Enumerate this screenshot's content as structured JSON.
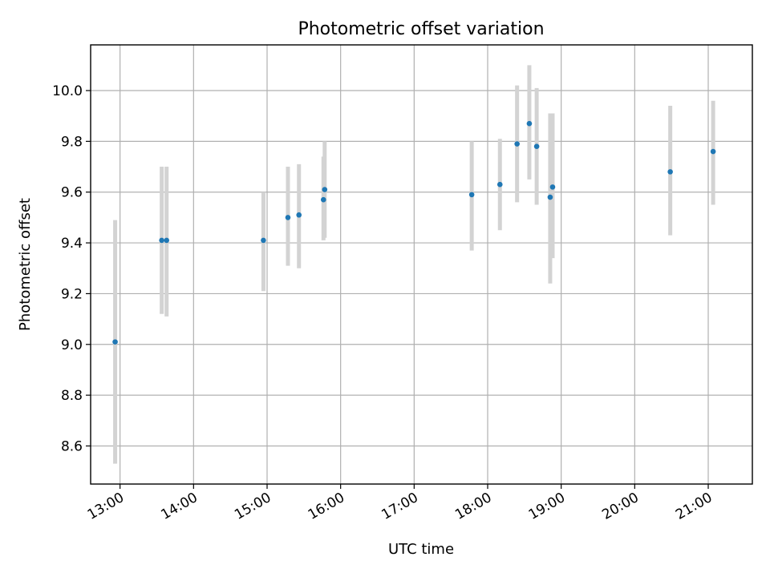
{
  "chart_data": {
    "type": "scatter",
    "title": "Photometric offset variation",
    "xlabel": "UTC time",
    "ylabel": "Photometric offset",
    "x_ticks": [
      "13:00",
      "14:00",
      "15:00",
      "16:00",
      "17:00",
      "18:00",
      "19:00",
      "20:00",
      "21:00"
    ],
    "y_ticks": [
      "8.6",
      "8.8",
      "9.0",
      "9.2",
      "9.4",
      "9.6",
      "9.8",
      "10.0"
    ],
    "xlim": [
      "12:36",
      "21:36"
    ],
    "ylim": [
      8.45,
      10.18
    ],
    "grid": true,
    "colors": {
      "point": "#1f77b4",
      "errorbar": "#d3d3d3"
    },
    "series": [
      {
        "points": [
          {
            "x": "12:56",
            "y": 9.01,
            "yerr_low": 8.53,
            "yerr_high": 9.49
          },
          {
            "x": "13:34",
            "y": 9.41,
            "yerr_low": 9.12,
            "yerr_high": 9.7
          },
          {
            "x": "13:38",
            "y": 9.41,
            "yerr_low": 9.11,
            "yerr_high": 9.7
          },
          {
            "x": "14:57",
            "y": 9.41,
            "yerr_low": 9.21,
            "yerr_high": 9.6
          },
          {
            "x": "15:17",
            "y": 9.5,
            "yerr_low": 9.31,
            "yerr_high": 9.7
          },
          {
            "x": "15:26",
            "y": 9.51,
            "yerr_low": 9.3,
            "yerr_high": 9.71
          },
          {
            "x": "15:46",
            "y": 9.57,
            "yerr_low": 9.41,
            "yerr_high": 9.74
          },
          {
            "x": "15:47",
            "y": 9.61,
            "yerr_low": 9.42,
            "yerr_high": 9.8
          },
          {
            "x": "17:47",
            "y": 9.59,
            "yerr_low": 9.37,
            "yerr_high": 9.8
          },
          {
            "x": "18:10",
            "y": 9.63,
            "yerr_low": 9.45,
            "yerr_high": 9.81
          },
          {
            "x": "18:24",
            "y": 9.79,
            "yerr_low": 9.56,
            "yerr_high": 10.02
          },
          {
            "x": "18:34",
            "y": 9.87,
            "yerr_low": 9.65,
            "yerr_high": 10.1
          },
          {
            "x": "18:40",
            "y": 9.78,
            "yerr_low": 9.55,
            "yerr_high": 10.01
          },
          {
            "x": "18:51",
            "y": 9.58,
            "yerr_low": 9.24,
            "yerr_high": 9.91
          },
          {
            "x": "18:53",
            "y": 9.62,
            "yerr_low": 9.34,
            "yerr_high": 9.91
          },
          {
            "x": "20:29",
            "y": 9.68,
            "yerr_low": 9.43,
            "yerr_high": 9.94
          },
          {
            "x": "21:04",
            "y": 9.76,
            "yerr_low": 9.55,
            "yerr_high": 9.96
          }
        ]
      }
    ]
  }
}
